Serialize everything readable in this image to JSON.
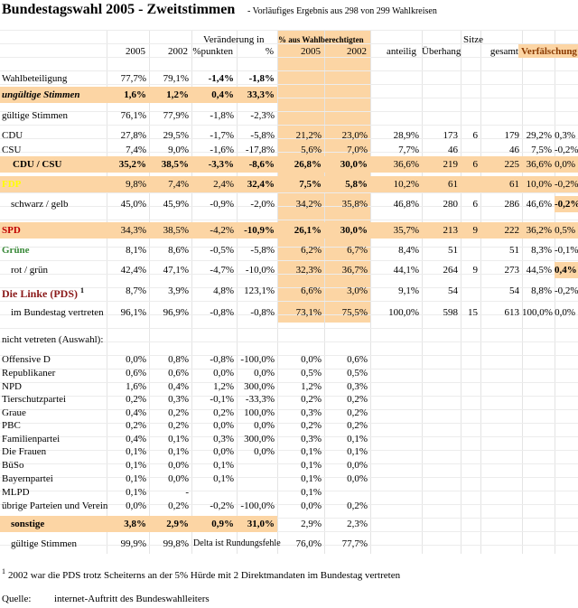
{
  "title": "Bundestagswahl 2005 - Zweitstimmen",
  "subtitle": "- Vorläufiges Ergebnis aus 298 von 299 Wahlkreisen",
  "header": {
    "change": "Veränderung in",
    "share": "% aus Wahlberechtigten",
    "seats": "Sitze",
    "columns": [
      "2005",
      "2002",
      "%punkten",
      "%",
      "2005",
      "2002",
      "anteilig",
      "Überhang",
      "gesamt",
      "Verfälschung"
    ]
  },
  "rows": [
    {
      "label": "Wahlbeteiligung",
      "cells": [
        "77,7%",
        "79,1%",
        "-1,4%",
        "-1,8%",
        null,
        null,
        null,
        null,
        null,
        null,
        null,
        null
      ]
    },
    {
      "label": "ungültige Stimmen",
      "cells": [
        "1,6%",
        "1,2%",
        "0,4%",
        "33,3%",
        null,
        null,
        null,
        null,
        null,
        null,
        null,
        null
      ]
    },
    {
      "label": "gültige Stimmen",
      "cells": [
        "76,1%",
        "77,9%",
        "-1,8%",
        "-2,3%",
        null,
        null,
        null,
        null,
        null,
        null,
        null,
        null
      ]
    },
    {
      "label": "CDU",
      "cells": [
        "27,8%",
        "29,5%",
        "-1,7%",
        "-5,8%",
        "21,2%",
        "23,0%",
        "28,9%",
        "173",
        "6",
        "179",
        "29,2%",
        "0,3%"
      ]
    },
    {
      "label": "CSU",
      "cells": [
        "7,4%",
        "9,0%",
        "-1,6%",
        "-17,8%",
        "5,6%",
        "7,0%",
        "7,7%",
        "46",
        null,
        "46",
        "7,5%",
        "-0,2%"
      ]
    },
    {
      "label": "CDU / CSU",
      "cells": [
        "35,2%",
        "38,5%",
        "-3,3%",
        "-8,6%",
        "26,8%",
        "30,0%",
        "36,6%",
        "219",
        "6",
        "225",
        "36,6%",
        "0,0%"
      ]
    },
    {
      "label": "FDP",
      "cells": [
        "9,8%",
        "7,4%",
        "2,4%",
        "32,4%",
        "7,5%",
        "5,8%",
        "10,2%",
        "61",
        null,
        "61",
        "10,0%",
        "-0,2%"
      ]
    },
    {
      "label": "schwarz / gelb",
      "cells": [
        "45,0%",
        "45,9%",
        "-0,9%",
        "-2,0%",
        "34,2%",
        "35,8%",
        "46,8%",
        "280",
        "6",
        "286",
        "46,6%",
        "-0,2%"
      ]
    },
    {
      "label": "SPD",
      "cells": [
        "34,3%",
        "38,5%",
        "-4,2%",
        "-10,9%",
        "26,1%",
        "30,0%",
        "35,7%",
        "213",
        "9",
        "222",
        "36,2%",
        "0,5%"
      ]
    },
    {
      "label": "Grüne",
      "cells": [
        "8,1%",
        "8,6%",
        "-0,5%",
        "-5,8%",
        "6,2%",
        "6,7%",
        "8,4%",
        "51",
        null,
        "51",
        "8,3%",
        "-0,1%"
      ]
    },
    {
      "label": "rot / grün",
      "cells": [
        "42,4%",
        "47,1%",
        "-4,7%",
        "-10,0%",
        "32,3%",
        "36,7%",
        "44,1%",
        "264",
        "9",
        "273",
        "44,5%",
        "0,4%"
      ]
    },
    {
      "label": "Die Linke (PDS)",
      "note": "1",
      "cells": [
        "8,7%",
        "3,9%",
        "4,8%",
        "123,1%",
        "6,6%",
        "3,0%",
        "9,1%",
        "54",
        null,
        "54",
        "8,8%",
        "-0,2%"
      ]
    },
    {
      "label": "im Bundestag vertreten",
      "cells": [
        "96,1%",
        "96,9%",
        "-0,8%",
        "-0,8%",
        "73,1%",
        "75,5%",
        "100,0%",
        "598",
        "15",
        "613",
        "100,0%",
        "0,0%"
      ]
    },
    {
      "label": "nicht vetreten (Auswahl):",
      "cells": [
        null,
        null,
        null,
        null,
        null,
        null,
        null,
        null,
        null,
        null,
        null,
        null
      ]
    },
    {
      "label": "Offensive D",
      "cells": [
        "0,0%",
        "0,8%",
        "-0,8%",
        "-100,0%",
        "0,0%",
        "0,6%",
        null,
        null,
        null,
        null,
        null,
        null
      ]
    },
    {
      "label": "Republikaner",
      "cells": [
        "0,6%",
        "0,6%",
        "0,0%",
        "0,0%",
        "0,5%",
        "0,5%",
        null,
        null,
        null,
        null,
        null,
        null
      ]
    },
    {
      "label": "NPD",
      "cells": [
        "1,6%",
        "0,4%",
        "1,2%",
        "300,0%",
        "1,2%",
        "0,3%",
        null,
        null,
        null,
        null,
        null,
        null
      ]
    },
    {
      "label": "Tierschutzpartei",
      "cells": [
        "0,2%",
        "0,3%",
        "-0,1%",
        "-33,3%",
        "0,2%",
        "0,2%",
        null,
        null,
        null,
        null,
        null,
        null
      ]
    },
    {
      "label": "Graue",
      "cells": [
        "0,4%",
        "0,2%",
        "0,2%",
        "100,0%",
        "0,3%",
        "0,2%",
        null,
        null,
        null,
        null,
        null,
        null
      ]
    },
    {
      "label": "PBC",
      "cells": [
        "0,2%",
        "0,2%",
        "0,0%",
        "0,0%",
        "0,2%",
        "0,2%",
        null,
        null,
        null,
        null,
        null,
        null
      ]
    },
    {
      "label": "Familienpartei",
      "cells": [
        "0,4%",
        "0,1%",
        "0,3%",
        "300,0%",
        "0,3%",
        "0,1%",
        null,
        null,
        null,
        null,
        null,
        null
      ]
    },
    {
      "label": "Die Frauen",
      "cells": [
        "0,1%",
        "0,1%",
        "0,0%",
        "0,0%",
        "0,1%",
        "0,1%",
        null,
        null,
        null,
        null,
        null,
        null
      ]
    },
    {
      "label": "BüSo",
      "cells": [
        "0,1%",
        "0,0%",
        "0,1%",
        null,
        "0,1%",
        "0,0%",
        null,
        null,
        null,
        null,
        null,
        null
      ]
    },
    {
      "label": "Bayernpartei",
      "cells": [
        "0,1%",
        "0,0%",
        "0,1%",
        null,
        "0,1%",
        "0,0%",
        null,
        null,
        null,
        null,
        null,
        null
      ]
    },
    {
      "label": "MLPD",
      "cells": [
        "0,1%",
        "-",
        null,
        null,
        "0,1%",
        null,
        null,
        null,
        null,
        null,
        null,
        null
      ]
    },
    {
      "label": "übrige Parteien und Verein",
      "cells": [
        "0,0%",
        "0,2%",
        "-0,2%",
        "-100,0%",
        "0,0%",
        "0,2%",
        null,
        null,
        null,
        null,
        null,
        null
      ]
    },
    {
      "label": "sonstige",
      "cells": [
        "3,8%",
        "2,9%",
        "0,9%",
        "31,0%",
        "2,9%",
        "2,3%",
        null,
        null,
        null,
        null,
        null,
        null
      ]
    },
    {
      "label": "gültige Stimmen",
      "cells": [
        "99,9%",
        "99,8%",
        "Delta ist Rundungsfehle",
        null,
        "76,0%",
        "77,7%",
        null,
        null,
        null,
        null,
        null,
        null
      ]
    }
  ],
  "footnote": {
    "mark": "1",
    "text": "2002 war die PDS trotz Scheiterns an der 5% Hürde mit 2 Direktmandaten im Bundestag vertreten"
  },
  "source": {
    "label": "Quelle:",
    "text": "internet-Auftritt des Bundeswahlleiters"
  }
}
